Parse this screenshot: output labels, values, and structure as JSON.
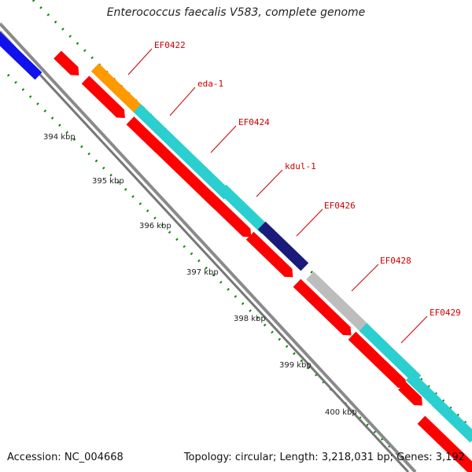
{
  "title": "Enterococcus faecalis V583, complete genome",
  "footer": {
    "accession_label": "Accession:",
    "accession_value": "NC_004668",
    "topology_label": "Topology:",
    "topology_value": "circular",
    "length_label": "Length:",
    "length_value": "3,218,031 bp",
    "genes_label": "Genes:",
    "genes_value": "3,192"
  },
  "ticks": [
    "394 kbp",
    "395 kbp",
    "396 kbp",
    "397 kbp",
    "398 kbp",
    "399 kbp",
    "400 kbp"
  ],
  "gene_labels": [
    "EF0422",
    "eda-1",
    "EF0424",
    "kdul-1",
    "EF0426",
    "EF0428",
    "EF0429"
  ],
  "colors": {
    "backbone": "#8a8a8a",
    "red": "#ff0000",
    "cyan": "#2ccfcf",
    "orange": "#ff9900",
    "blue": "#1111ee",
    "navy": "#1a1a7a",
    "grey": "#bdbdbd",
    "tick_green": "#008800",
    "label_red": "#cc0000"
  }
}
